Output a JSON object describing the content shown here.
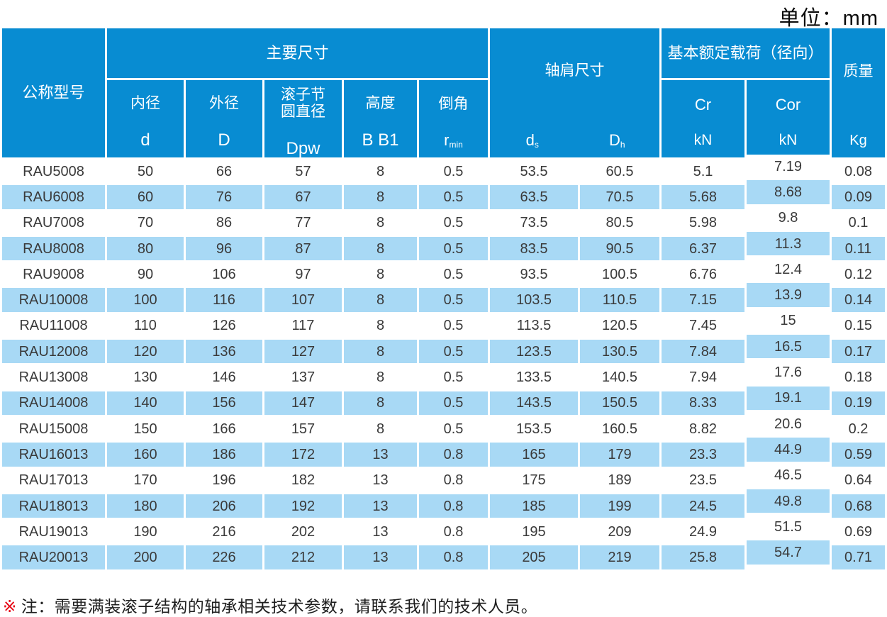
{
  "page": {
    "unit_label": "单位：mm",
    "note_marker": "※",
    "note_text": "注：需要满装滚子结构的轴承相关技术参数，请联系我们的技术人员。"
  },
  "colors": {
    "header_blue": "#088CD2",
    "stripe_blue": "#A8D9F5",
    "data_text": "#3A3A3A",
    "note_marker_red": "#E60012"
  },
  "table": {
    "header": {
      "model": "公称型号",
      "main_group": "主要尺寸",
      "shoulder_group": "轴肩尺寸",
      "load_group": "基本额定载荷（径向）",
      "mass_label": "质量",
      "mass_unit": "Kg",
      "inner_label": "内径",
      "inner_symbol": "d",
      "outer_label": "外径",
      "outer_symbol": "D",
      "pitch_label": "滚子节\n圆直径",
      "pitch_symbol": "Dpw",
      "height_label": "高度",
      "height_symbol": "B B1",
      "chamfer_label": "倒角",
      "chamfer_symbol_base": "r",
      "chamfer_symbol_sub": "min",
      "ds_base": "d",
      "ds_sub": "s",
      "dh_base": "D",
      "dh_sub": "h",
      "cr_symbol": "Cr",
      "cr_unit": "kN",
      "cor_symbol": "Cor",
      "cor_unit": "kN"
    },
    "rows": [
      [
        "RAU5008",
        "50",
        "66",
        "57",
        "8",
        "0.5",
        "53.5",
        "60.5",
        "5.1",
        "7.19",
        "0.08"
      ],
      [
        "RAU6008",
        "60",
        "76",
        "67",
        "8",
        "0.5",
        "63.5",
        "70.5",
        "5.68",
        "8.68",
        "0.09"
      ],
      [
        "RAU7008",
        "70",
        "86",
        "77",
        "8",
        "0.5",
        "73.5",
        "80.5",
        "5.98",
        "9.8",
        "0.1"
      ],
      [
        "RAU8008",
        "80",
        "96",
        "87",
        "8",
        "0.5",
        "83.5",
        "90.5",
        "6.37",
        "11.3",
        "0.11"
      ],
      [
        "RAU9008",
        "90",
        "106",
        "97",
        "8",
        "0.5",
        "93.5",
        "100.5",
        "6.76",
        "12.4",
        "0.12"
      ],
      [
        "RAU10008",
        "100",
        "116",
        "107",
        "8",
        "0.5",
        "103.5",
        "110.5",
        "7.15",
        "13.9",
        "0.14"
      ],
      [
        "RAU11008",
        "110",
        "126",
        "117",
        "8",
        "0.5",
        "113.5",
        "120.5",
        "7.45",
        "15",
        "0.15"
      ],
      [
        "RAU12008",
        "120",
        "136",
        "127",
        "8",
        "0.5",
        "123.5",
        "130.5",
        "7.84",
        "16.5",
        "0.17"
      ],
      [
        "RAU13008",
        "130",
        "146",
        "137",
        "8",
        "0.5",
        "133.5",
        "140.5",
        "7.94",
        "17.6",
        "0.18"
      ],
      [
        "RAU14008",
        "140",
        "156",
        "147",
        "8",
        "0.5",
        "143.5",
        "150.5",
        "8.33",
        "19.1",
        "0.19"
      ],
      [
        "RAU15008",
        "150",
        "166",
        "157",
        "8",
        "0.5",
        "153.5",
        "160.5",
        "8.82",
        "20.6",
        "0.2"
      ],
      [
        "RAU16013",
        "160",
        "186",
        "172",
        "13",
        "0.8",
        "165",
        "179",
        "23.3",
        "44.9",
        "0.59"
      ],
      [
        "RAU17013",
        "170",
        "196",
        "182",
        "13",
        "0.8",
        "175",
        "189",
        "23.5",
        "46.5",
        "0.64"
      ],
      [
        "RAU18013",
        "180",
        "206",
        "192",
        "13",
        "0.8",
        "185",
        "199",
        "24.5",
        "49.8",
        "0.68"
      ],
      [
        "RAU19013",
        "190",
        "216",
        "202",
        "13",
        "0.8",
        "195",
        "209",
        "24.9",
        "51.5",
        "0.69"
      ],
      [
        "RAU20013",
        "200",
        "226",
        "212",
        "13",
        "0.8",
        "205",
        "219",
        "25.8",
        "54.7",
        "0.71"
      ]
    ]
  }
}
